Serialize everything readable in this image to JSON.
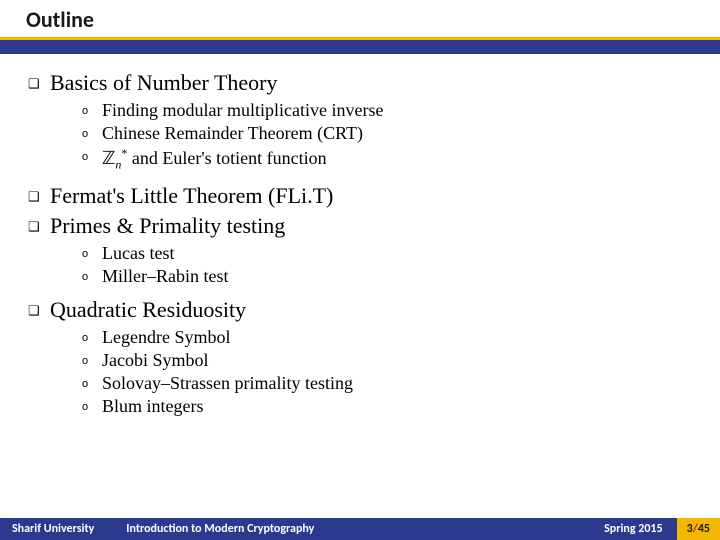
{
  "header": {
    "title": "Outline",
    "yellow_color": "#f2b800",
    "blue_color": "#2b3a8f"
  },
  "outline": {
    "items": [
      {
        "label": "Basics of Number Theory",
        "sub": [
          "Finding modular multiplicative inverse",
          "Chinese Remainder Theorem (CRT)",
          "ℤₙ* and Euler's totient function"
        ]
      },
      {
        "label": "Fermat's Little Theorem (FLi.T)",
        "sub": []
      },
      {
        "label": "Primes & Primality testing",
        "sub": [
          "Lucas test",
          "Miller–Rabin test"
        ]
      },
      {
        "label": "Quadratic Residuosity",
        "sub": [
          "Legendre Symbol",
          "Jacobi Symbol",
          "Solovay–Strassen primality testing",
          "Blum integers"
        ]
      }
    ]
  },
  "footer": {
    "university": "Sharif University",
    "course": "Introduction to Modern Cryptography",
    "term": "Spring 2015",
    "page_current": "3",
    "page_sep": "/",
    "page_total": "45"
  },
  "bullets": {
    "level1": "❑",
    "level2": "o"
  }
}
